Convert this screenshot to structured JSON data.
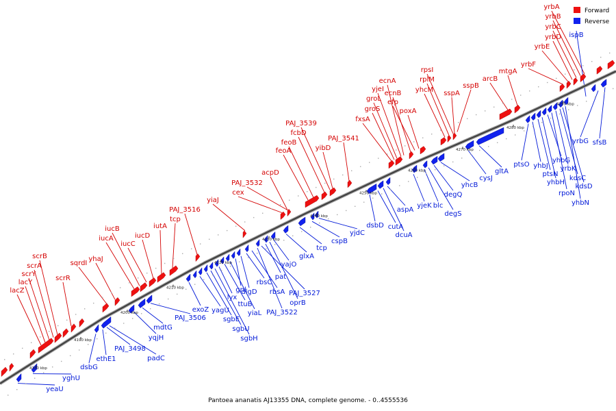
{
  "caption": "Pantoea ananatis AJ13355 DNA, complete genome. - 0..4555536",
  "legend": {
    "forward": {
      "label": "Forward",
      "color": "#ee1111"
    },
    "reverse": {
      "label": "Reverse",
      "color": "#1122ee"
    }
  },
  "colors": {
    "forward_gene": "#ee1111",
    "reverse_gene": "#1122ee",
    "forward_text": "#d40000",
    "reverse_text": "#0018d8"
  },
  "scale_labels": [
    "4180 kbp",
    "4190 kbp",
    "4200 kbp",
    "4210 kbp",
    "4220 kbp",
    "4230 kbp",
    "4240 kbp",
    "4250 kbp",
    "4260 kbp",
    "4270 kbp",
    "4280 kbp",
    "4290 kbp"
  ],
  "forward_labels": [
    "lacZ",
    "lacY",
    "scrY",
    "scrA",
    "scrB",
    "scrR",
    "sqrdI",
    "yhaJ",
    "iucA",
    "iucB",
    "iucC",
    "iucD",
    "iutA",
    "tcp",
    "PAJ_3516",
    "yiaJ",
    "cex",
    "PAJ_3532",
    "acpD",
    "feoA",
    "feoB",
    "fcbD",
    "PAJ_3539",
    "yibD",
    "PAJ_3541",
    "fxsA",
    "groS",
    "groL",
    "yjeI",
    "ecnA",
    "ecnB",
    "efp",
    "poxA",
    "yhcM",
    "rplM",
    "rpsI",
    "sspA",
    "sspB",
    "arcB",
    "mtgA",
    "yrbF",
    "yrbE",
    "yrbD",
    "yrbC",
    "yrbB",
    "yrbA"
  ],
  "reverse_labels": [
    "yeaU",
    "yghU",
    "dsbG",
    "ethE1",
    "PAJ_3498",
    "padC",
    "yqjH",
    "mdtG",
    "PAJ_3506",
    "exoZ",
    "yagU",
    "sgbE",
    "sgbU",
    "sgbH",
    "lyx",
    "ttuB",
    "yiaL",
    "gnl",
    "dlgD",
    "rbsC",
    "rbsA",
    "PAJ_3522",
    "PAJ_3527",
    "pat",
    "oprB",
    "yajO",
    "glxA",
    "tcp",
    "cspB",
    "yjdC",
    "dsbD",
    "cutA",
    "dcuA",
    "aspA",
    "yjeK",
    "blc",
    "degS",
    "degQ",
    "yhcB",
    "cysJ",
    "gltA",
    "ptsO",
    "yhbJ",
    "ptsN",
    "yhbH",
    "yhbG",
    "rpoN",
    "yrbK",
    "kdsC",
    "kdsD",
    "yhbN",
    "yrbG",
    "sfsB",
    "ispB"
  ]
}
